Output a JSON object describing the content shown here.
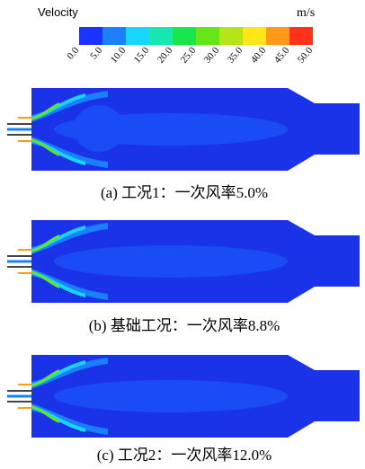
{
  "legend": {
    "title": "Velocity",
    "unit": "m/s",
    "ticks": [
      "0.0",
      "5.0",
      "10.0",
      "15.0",
      "20.0",
      "25.0",
      "30.0",
      "35.0",
      "40.0",
      "45.0",
      "50.0"
    ],
    "colors": [
      "#1a33ff",
      "#1a80ff",
      "#19d6ff",
      "#19e6b3",
      "#19e64d",
      "#66e619",
      "#b3e619",
      "#ffe619",
      "#ff9919",
      "#ff3319"
    ]
  },
  "panels": [
    {
      "caption": "(a) 工况1：一次风率5.0%"
    },
    {
      "caption": "(b) 基础工况：一次风率8.8%"
    },
    {
      "caption": "(c) 工况2：一次风率12.0%"
    }
  ]
}
